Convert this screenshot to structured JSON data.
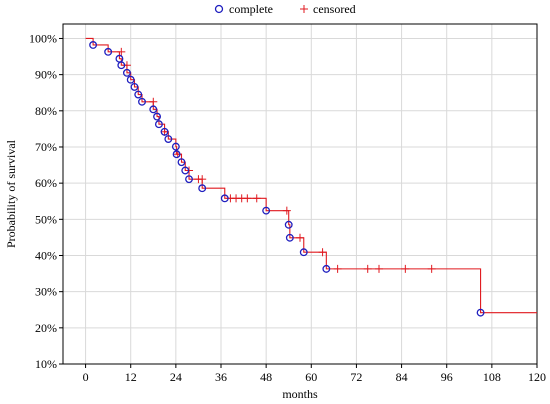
{
  "chart_data": {
    "type": "line",
    "subtype": "kaplan-meier survival curve (step)",
    "xlabel": "months",
    "ylabel": "Probability of survival",
    "xlim": [
      -6,
      120
    ],
    "ylim": [
      10,
      104
    ],
    "x_ticks": [
      0,
      12,
      24,
      36,
      48,
      60,
      72,
      84,
      96,
      108,
      120
    ],
    "y_ticks": [
      10,
      20,
      30,
      40,
      50,
      60,
      70,
      80,
      90,
      100
    ],
    "x_tick_labels": [
      "0",
      "12",
      "24",
      "36",
      "48",
      "60",
      "72",
      "84",
      "96",
      "108",
      "120"
    ],
    "y_tick_labels": [
      "10%",
      "20%",
      "30%",
      "40%",
      "50%",
      "60%",
      "70%",
      "80%",
      "90%",
      "100%"
    ],
    "grid": true,
    "legend_position": "top-center",
    "colors": {
      "curve": "#e0191f",
      "complete": "#1f1fbf",
      "censored": "#e0191f"
    },
    "legend": [
      {
        "key": "complete",
        "label": "complete",
        "marker": "circle"
      },
      {
        "key": "censored",
        "label": "censored",
        "marker": "plus"
      }
    ],
    "step_curve": [
      [
        0,
        100
      ],
      [
        2,
        98.2
      ],
      [
        6,
        96.3
      ],
      [
        9,
        94.4
      ],
      [
        9.5,
        92.6
      ],
      [
        11,
        90.5
      ],
      [
        12,
        88.6
      ],
      [
        13,
        86.6
      ],
      [
        14,
        84.5
      ],
      [
        15,
        82.5
      ],
      [
        18,
        80.4
      ],
      [
        19,
        78.4
      ],
      [
        19.5,
        76.3
      ],
      [
        21,
        74.2
      ],
      [
        22,
        72.2
      ],
      [
        24,
        70.1
      ],
      [
        24.2,
        68.0
      ],
      [
        25.5,
        65.8
      ],
      [
        26.5,
        63.5
      ],
      [
        27.5,
        61.1
      ],
      [
        31,
        58.6
      ],
      [
        37,
        55.8
      ],
      [
        48,
        52.4
      ],
      [
        54,
        48.5
      ],
      [
        54.3,
        44.9
      ],
      [
        58,
        40.9
      ],
      [
        64,
        36.3
      ],
      [
        105,
        24.2
      ],
      [
        120,
        24.2
      ]
    ],
    "complete": [
      [
        2,
        98.2
      ],
      [
        6,
        96.3
      ],
      [
        9,
        94.4
      ],
      [
        9.5,
        92.6
      ],
      [
        11,
        90.5
      ],
      [
        12,
        88.6
      ],
      [
        13,
        86.6
      ],
      [
        14,
        84.5
      ],
      [
        15,
        82.5
      ],
      [
        18,
        80.4
      ],
      [
        19,
        78.4
      ],
      [
        19.5,
        76.3
      ],
      [
        21,
        74.2
      ],
      [
        22,
        72.2
      ],
      [
        24,
        70.1
      ],
      [
        24.2,
        68.0
      ],
      [
        25.5,
        65.8
      ],
      [
        26.5,
        63.5
      ],
      [
        27.5,
        61.1
      ],
      [
        31,
        58.6
      ],
      [
        37,
        55.8
      ],
      [
        48,
        52.4
      ],
      [
        54,
        48.5
      ],
      [
        54.3,
        44.9
      ],
      [
        58,
        40.9
      ],
      [
        64,
        36.3
      ],
      [
        105,
        24.2
      ]
    ],
    "censored": [
      [
        9.5,
        96.3
      ],
      [
        11,
        92.6
      ],
      [
        18,
        82.5
      ],
      [
        21,
        74.2
      ],
      [
        24.5,
        68.0
      ],
      [
        27.5,
        63.5
      ],
      [
        30,
        61.1
      ],
      [
        31,
        61.1
      ],
      [
        38.5,
        55.8
      ],
      [
        40,
        55.8
      ],
      [
        41.5,
        55.8
      ],
      [
        43,
        55.8
      ],
      [
        45.5,
        55.8
      ],
      [
        53.5,
        52.4
      ],
      [
        57,
        44.9
      ],
      [
        63,
        40.9
      ],
      [
        67,
        36.3
      ],
      [
        75,
        36.3
      ],
      [
        78,
        36.3
      ],
      [
        85,
        36.3
      ],
      [
        92,
        36.3
      ]
    ]
  }
}
